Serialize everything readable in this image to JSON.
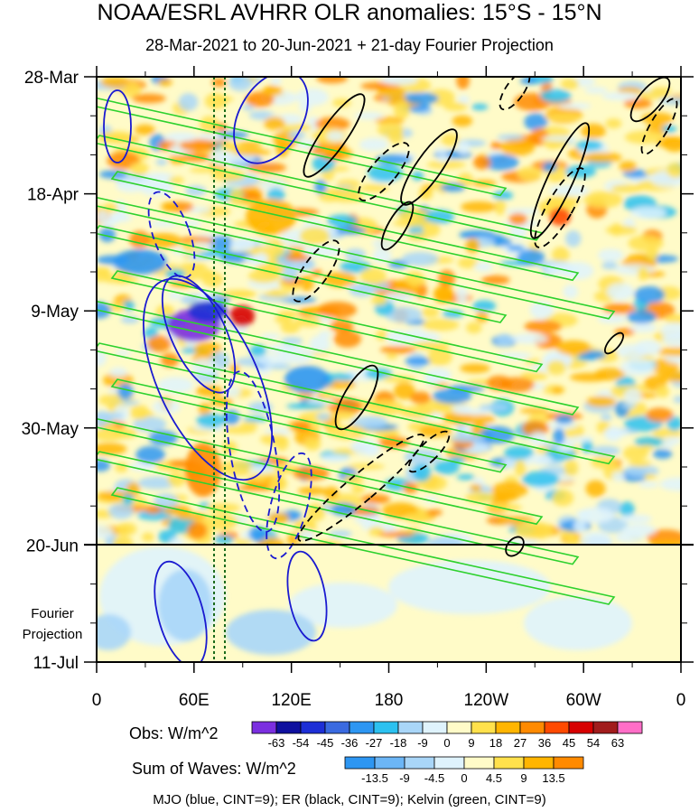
{
  "title": "NOAA/ESRL AVHRR OLR anomalies: 15°S - 15°N",
  "subtitle": "28-Mar-2021 to 20-Jun-2021 + 21-day Fourier Projection",
  "chart_data": {
    "type": "heatmap",
    "description_axes": "Hovmoller: longitude (x) vs time (y)",
    "x_ticks": [
      "0",
      "60E",
      "120E",
      "180",
      "120W",
      "60W",
      "0"
    ],
    "y_ticks": [
      "28-Mar",
      "18-Apr",
      "9-May",
      "30-May",
      "20-Jun",
      "11-Jul"
    ],
    "projection_label": [
      "Fourier",
      "Projection"
    ],
    "xlim": [
      0,
      360
    ],
    "observation_end": "20-Jun",
    "obs_colorbar": {
      "label": "Obs: W/m^2",
      "levels": [
        "-63",
        "-54",
        "-45",
        "-36",
        "-27",
        "-18",
        "-9",
        "0",
        "9",
        "18",
        "27",
        "36",
        "45",
        "54",
        "63"
      ],
      "colors": [
        "#7b2fe0",
        "#0f109e",
        "#1d2fd6",
        "#3a6ae0",
        "#2d96f2",
        "#2cc1f0",
        "#a9d6f8",
        "#dff3fd",
        "#fffbc8",
        "#ffe14c",
        "#ffb500",
        "#ff8a00",
        "#ff4a00",
        "#d70000",
        "#a11c1c",
        "#ff6ec7"
      ]
    },
    "waves_colorbar": {
      "label": "Sum of Waves: W/m^2",
      "levels": [
        "-13.5",
        "-9",
        "-4.5",
        "0",
        "4.5",
        "9",
        "13.5"
      ],
      "colors": [
        "#2d96f2",
        "#6cb6f6",
        "#a9d6f8",
        "#dff3fd",
        "#fffbc8",
        "#ffe14c",
        "#ffb500",
        "#ff8a00"
      ]
    },
    "series": [
      {
        "name": "MJO (blue, CINT=9)",
        "color": "#1a1ad0"
      },
      {
        "name": "ER (black, CINT=9)",
        "color": "#000000"
      },
      {
        "name": "Kelvin (green, CINT=9)",
        "color": "#2ed12e"
      }
    ]
  },
  "footer": "MJO (blue, CINT=9); ER (black, CINT=9); Kelvin (green, CINT=9)"
}
